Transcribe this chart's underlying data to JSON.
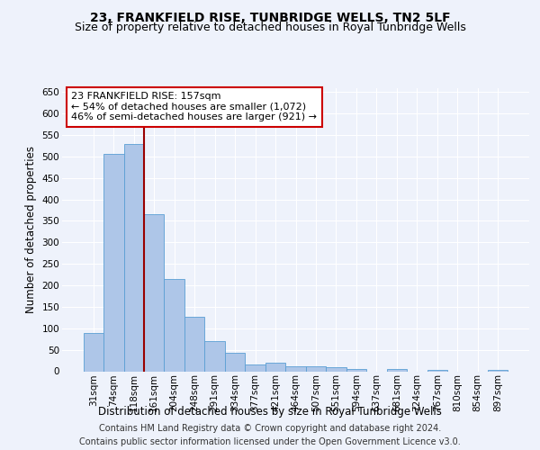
{
  "title": "23, FRANKFIELD RISE, TUNBRIDGE WELLS, TN2 5LF",
  "subtitle": "Size of property relative to detached houses in Royal Tunbridge Wells",
  "xlabel": "Distribution of detached houses by size in Royal Tunbridge Wells",
  "ylabel": "Number of detached properties",
  "footer_line1": "Contains HM Land Registry data © Crown copyright and database right 2024.",
  "footer_line2": "Contains public sector information licensed under the Open Government Licence v3.0.",
  "bin_labels": [
    "31sqm",
    "74sqm",
    "118sqm",
    "161sqm",
    "204sqm",
    "248sqm",
    "291sqm",
    "334sqm",
    "377sqm",
    "421sqm",
    "464sqm",
    "507sqm",
    "551sqm",
    "594sqm",
    "637sqm",
    "681sqm",
    "724sqm",
    "767sqm",
    "810sqm",
    "854sqm",
    "897sqm"
  ],
  "bar_values": [
    90,
    507,
    530,
    365,
    215,
    126,
    70,
    43,
    16,
    19,
    12,
    12,
    9,
    5,
    0,
    5,
    0,
    4,
    0,
    0,
    4
  ],
  "bar_color": "#aec6e8",
  "bar_edge_color": "#5a9fd4",
  "annotation_line1": "23 FRANKFIELD RISE: 157sqm",
  "annotation_line2": "← 54% of detached houses are smaller (1,072)",
  "annotation_line3": "46% of semi-detached houses are larger (921) →",
  "vline_x": 2.5,
  "vline_color": "#990000",
  "annotation_box_color": "#ffffff",
  "annotation_box_edge": "#cc0000",
  "ylim": [
    0,
    660
  ],
  "yticks": [
    0,
    50,
    100,
    150,
    200,
    250,
    300,
    350,
    400,
    450,
    500,
    550,
    600,
    650
  ],
  "background_color": "#eef2fb",
  "grid_color": "#ffffff",
  "title_fontsize": 10,
  "subtitle_fontsize": 9,
  "axis_label_fontsize": 8.5,
  "tick_fontsize": 7.5,
  "annotation_fontsize": 8,
  "footer_fontsize": 7
}
